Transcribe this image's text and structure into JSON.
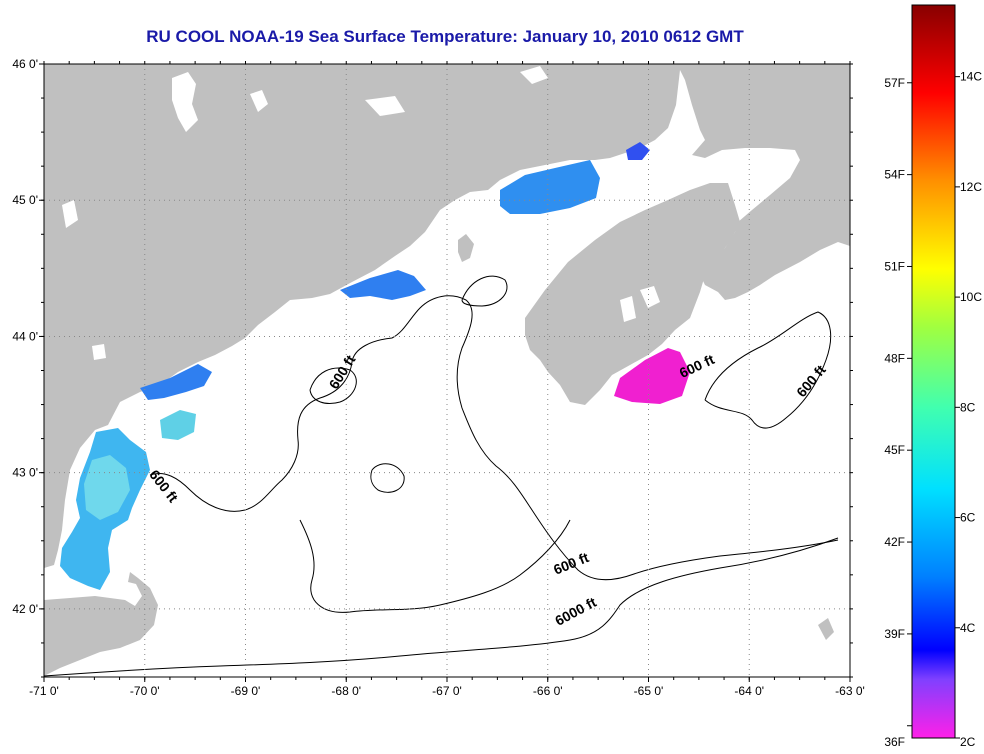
{
  "title": "RU COOL  NOAA-19  Sea Surface Temperature:  January 10, 2010 0612 GMT",
  "map": {
    "lon_range": [
      -71,
      -63
    ],
    "lat_range": [
      41.5,
      46
    ],
    "lon_ticks": [
      -71,
      -70,
      -69,
      -68,
      -67,
      -66,
      -65,
      -64,
      -63
    ],
    "lon_labels": [
      "-71 0'",
      "-70 0'",
      "-69 0'",
      "-68 0'",
      "-67 0'",
      "-66 0'",
      "-65 0'",
      "-64 0'",
      "-63 0'"
    ],
    "lat_ticks": [
      46,
      45,
      44,
      43,
      42
    ],
    "lat_labels": [
      "46 0'",
      "45 0'",
      "44 0'",
      "43 0'",
      "42 0'"
    ],
    "grid": true,
    "land_color": "#c0c0c0",
    "water_color": "#ffffff",
    "contour_labels": [
      {
        "text": "600 ft",
        "lon": -68.0,
        "lat": 43.72,
        "rotate": -58
      },
      {
        "text": "600 ft",
        "lon": -69.85,
        "lat": 42.88,
        "rotate": 52
      },
      {
        "text": "600 ft",
        "lon": -64.5,
        "lat": 43.75,
        "rotate": -25
      },
      {
        "text": "600 ft",
        "lon": -63.35,
        "lat": 43.65,
        "rotate": -50
      },
      {
        "text": "600 ft",
        "lon": -65.75,
        "lat": 42.3,
        "rotate": -22
      },
      {
        "text": "6000 ft",
        "lon": -65.7,
        "lat": 41.95,
        "rotate": -28
      }
    ]
  },
  "colorbar": {
    "celsius_labels": [
      "14C",
      "12C",
      "10C",
      "8C",
      "6C",
      "4C",
      "2C"
    ],
    "celsius_values": [
      14,
      12,
      10,
      8,
      6,
      4,
      2
    ],
    "fahrenheit_labels": [
      "57F",
      "54F",
      "51F",
      "48F",
      "45F",
      "42F",
      "39F",
      "36F"
    ],
    "fahrenheit_values": [
      57,
      54,
      51,
      48,
      45,
      42,
      39,
      36
    ],
    "range_c": [
      2,
      15.3
    ]
  }
}
